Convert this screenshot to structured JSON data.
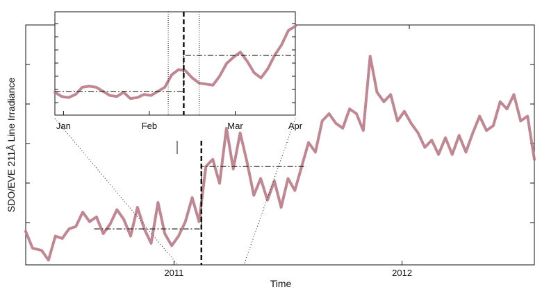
{
  "chart_data": {
    "type": "line",
    "series_color": "#b97a86",
    "main": {
      "xlabel": "Time",
      "ylabel": "SDO/EVE 211Å Line Irradiance",
      "x_range_year": [
        2010.35,
        2012.58
      ],
      "y_range": [
        0,
        1
      ],
      "x_ticks": [
        {
          "x": 2011,
          "label": "2011"
        },
        {
          "x": 2012,
          "label": "2012"
        }
      ],
      "series": {
        "x": [
          2010.35,
          2010.38,
          2010.42,
          2010.45,
          2010.48,
          2010.51,
          2010.54,
          2010.57,
          2010.6,
          2010.63,
          2010.66,
          2010.69,
          2010.72,
          2010.75,
          2010.78,
          2010.81,
          2010.84,
          2010.87,
          2010.9,
          2010.93,
          2010.96,
          2010.99,
          2011.02,
          2011.05,
          2011.08,
          2011.11,
          2011.14,
          2011.17,
          2011.2,
          2011.23,
          2011.26,
          2011.29,
          2011.32,
          2011.35,
          2011.38,
          2011.41,
          2011.44,
          2011.47,
          2011.5,
          2011.53,
          2011.56,
          2011.59,
          2011.62,
          2011.65,
          2011.68,
          2011.71,
          2011.74,
          2011.77,
          2011.8,
          2011.83,
          2011.86,
          2011.89,
          2011.92,
          2011.95,
          2011.98,
          2012.01,
          2012.04,
          2012.07,
          2012.1,
          2012.13,
          2012.16,
          2012.19,
          2012.22,
          2012.25,
          2012.28,
          2012.31,
          2012.34,
          2012.37,
          2012.4,
          2012.43,
          2012.46,
          2012.49,
          2012.52,
          2012.55,
          2012.58
        ],
        "y": [
          0.14,
          0.07,
          0.06,
          0.02,
          0.12,
          0.11,
          0.15,
          0.16,
          0.22,
          0.18,
          0.2,
          0.13,
          0.17,
          0.23,
          0.19,
          0.12,
          0.24,
          0.15,
          0.09,
          0.26,
          0.13,
          0.08,
          0.12,
          0.18,
          0.28,
          0.18,
          0.41,
          0.44,
          0.34,
          0.57,
          0.4,
          0.55,
          0.43,
          0.29,
          0.36,
          0.27,
          0.35,
          0.24,
          0.36,
          0.31,
          0.41,
          0.51,
          0.47,
          0.6,
          0.63,
          0.59,
          0.57,
          0.65,
          0.63,
          0.56,
          0.87,
          0.72,
          0.68,
          0.71,
          0.6,
          0.64,
          0.59,
          0.55,
          0.49,
          0.52,
          0.46,
          0.53,
          0.46,
          0.54,
          0.47,
          0.55,
          0.62,
          0.56,
          0.58,
          0.68,
          0.65,
          0.71,
          0.6,
          0.62,
          0.44
        ]
      },
      "steps": [
        {
          "x0": 2010.65,
          "x1": 2011.12,
          "y": 0.15
        },
        {
          "x0": 2011.12,
          "x1": 2011.58,
          "y": 0.41
        }
      ],
      "vline_year": 2011.12
    },
    "inset": {
      "x_range_months": [
        0.4,
        3.2
      ],
      "y_range": [
        0,
        1
      ],
      "x_ticks": [
        {
          "x": 0.5,
          "label": "Jan"
        },
        {
          "x": 1.5,
          "label": "Feb"
        },
        {
          "x": 2.5,
          "label": "Mar"
        },
        {
          "x": 3.2,
          "label": "Apr"
        }
      ],
      "series": {
        "x": [
          0.4,
          0.48,
          0.56,
          0.64,
          0.72,
          0.8,
          0.88,
          0.96,
          1.04,
          1.12,
          1.2,
          1.28,
          1.36,
          1.44,
          1.52,
          1.6,
          1.68,
          1.76,
          1.84,
          1.92,
          2.0,
          2.08,
          2.16,
          2.24,
          2.32,
          2.4,
          2.48,
          2.56,
          2.64,
          2.72,
          2.8,
          2.88,
          2.96,
          3.04,
          3.12,
          3.2
        ],
        "y": [
          0.22,
          0.18,
          0.17,
          0.2,
          0.27,
          0.28,
          0.27,
          0.23,
          0.19,
          0.18,
          0.22,
          0.16,
          0.17,
          0.2,
          0.19,
          0.23,
          0.27,
          0.39,
          0.44,
          0.43,
          0.36,
          0.31,
          0.3,
          0.29,
          0.38,
          0.5,
          0.56,
          0.61,
          0.52,
          0.41,
          0.36,
          0.45,
          0.58,
          0.68,
          0.82,
          0.86
        ]
      },
      "steps": [
        {
          "x0": 0.4,
          "x1": 1.9,
          "y": 0.23
        },
        {
          "x0": 1.9,
          "x1": 3.2,
          "y": 0.58
        }
      ],
      "dotted_vlines": [
        1.72,
        2.08
      ],
      "dashed_vline": 1.9
    }
  }
}
